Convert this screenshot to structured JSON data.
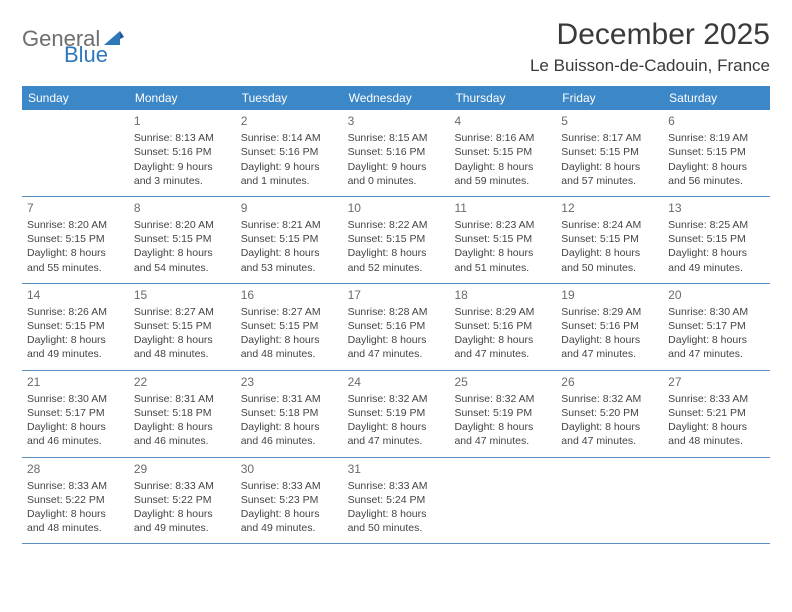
{
  "logo": {
    "part1": "General",
    "part2": "Blue"
  },
  "title": "December 2025",
  "location": "Le Buisson-de-Cadouin, France",
  "colors": {
    "header_bg": "#3b87c8",
    "header_text": "#ffffff",
    "border": "#5a8fbf",
    "daynum": "#6b6b6b",
    "body_text": "#444444",
    "logo_gray": "#6e6e6e",
    "logo_blue": "#2f77bb"
  },
  "weekdays": [
    "Sunday",
    "Monday",
    "Tuesday",
    "Wednesday",
    "Thursday",
    "Friday",
    "Saturday"
  ],
  "weeks": [
    [
      {
        "n": "",
        "sr": "",
        "ss": "",
        "dl": ""
      },
      {
        "n": "1",
        "sr": "Sunrise: 8:13 AM",
        "ss": "Sunset: 5:16 PM",
        "dl": "Daylight: 9 hours and 3 minutes."
      },
      {
        "n": "2",
        "sr": "Sunrise: 8:14 AM",
        "ss": "Sunset: 5:16 PM",
        "dl": "Daylight: 9 hours and 1 minutes."
      },
      {
        "n": "3",
        "sr": "Sunrise: 8:15 AM",
        "ss": "Sunset: 5:16 PM",
        "dl": "Daylight: 9 hours and 0 minutes."
      },
      {
        "n": "4",
        "sr": "Sunrise: 8:16 AM",
        "ss": "Sunset: 5:15 PM",
        "dl": "Daylight: 8 hours and 59 minutes."
      },
      {
        "n": "5",
        "sr": "Sunrise: 8:17 AM",
        "ss": "Sunset: 5:15 PM",
        "dl": "Daylight: 8 hours and 57 minutes."
      },
      {
        "n": "6",
        "sr": "Sunrise: 8:19 AM",
        "ss": "Sunset: 5:15 PM",
        "dl": "Daylight: 8 hours and 56 minutes."
      }
    ],
    [
      {
        "n": "7",
        "sr": "Sunrise: 8:20 AM",
        "ss": "Sunset: 5:15 PM",
        "dl": "Daylight: 8 hours and 55 minutes."
      },
      {
        "n": "8",
        "sr": "Sunrise: 8:20 AM",
        "ss": "Sunset: 5:15 PM",
        "dl": "Daylight: 8 hours and 54 minutes."
      },
      {
        "n": "9",
        "sr": "Sunrise: 8:21 AM",
        "ss": "Sunset: 5:15 PM",
        "dl": "Daylight: 8 hours and 53 minutes."
      },
      {
        "n": "10",
        "sr": "Sunrise: 8:22 AM",
        "ss": "Sunset: 5:15 PM",
        "dl": "Daylight: 8 hours and 52 minutes."
      },
      {
        "n": "11",
        "sr": "Sunrise: 8:23 AM",
        "ss": "Sunset: 5:15 PM",
        "dl": "Daylight: 8 hours and 51 minutes."
      },
      {
        "n": "12",
        "sr": "Sunrise: 8:24 AM",
        "ss": "Sunset: 5:15 PM",
        "dl": "Daylight: 8 hours and 50 minutes."
      },
      {
        "n": "13",
        "sr": "Sunrise: 8:25 AM",
        "ss": "Sunset: 5:15 PM",
        "dl": "Daylight: 8 hours and 49 minutes."
      }
    ],
    [
      {
        "n": "14",
        "sr": "Sunrise: 8:26 AM",
        "ss": "Sunset: 5:15 PM",
        "dl": "Daylight: 8 hours and 49 minutes."
      },
      {
        "n": "15",
        "sr": "Sunrise: 8:27 AM",
        "ss": "Sunset: 5:15 PM",
        "dl": "Daylight: 8 hours and 48 minutes."
      },
      {
        "n": "16",
        "sr": "Sunrise: 8:27 AM",
        "ss": "Sunset: 5:15 PM",
        "dl": "Daylight: 8 hours and 48 minutes."
      },
      {
        "n": "17",
        "sr": "Sunrise: 8:28 AM",
        "ss": "Sunset: 5:16 PM",
        "dl": "Daylight: 8 hours and 47 minutes."
      },
      {
        "n": "18",
        "sr": "Sunrise: 8:29 AM",
        "ss": "Sunset: 5:16 PM",
        "dl": "Daylight: 8 hours and 47 minutes."
      },
      {
        "n": "19",
        "sr": "Sunrise: 8:29 AM",
        "ss": "Sunset: 5:16 PM",
        "dl": "Daylight: 8 hours and 47 minutes."
      },
      {
        "n": "20",
        "sr": "Sunrise: 8:30 AM",
        "ss": "Sunset: 5:17 PM",
        "dl": "Daylight: 8 hours and 47 minutes."
      }
    ],
    [
      {
        "n": "21",
        "sr": "Sunrise: 8:30 AM",
        "ss": "Sunset: 5:17 PM",
        "dl": "Daylight: 8 hours and 46 minutes."
      },
      {
        "n": "22",
        "sr": "Sunrise: 8:31 AM",
        "ss": "Sunset: 5:18 PM",
        "dl": "Daylight: 8 hours and 46 minutes."
      },
      {
        "n": "23",
        "sr": "Sunrise: 8:31 AM",
        "ss": "Sunset: 5:18 PM",
        "dl": "Daylight: 8 hours and 46 minutes."
      },
      {
        "n": "24",
        "sr": "Sunrise: 8:32 AM",
        "ss": "Sunset: 5:19 PM",
        "dl": "Daylight: 8 hours and 47 minutes."
      },
      {
        "n": "25",
        "sr": "Sunrise: 8:32 AM",
        "ss": "Sunset: 5:19 PM",
        "dl": "Daylight: 8 hours and 47 minutes."
      },
      {
        "n": "26",
        "sr": "Sunrise: 8:32 AM",
        "ss": "Sunset: 5:20 PM",
        "dl": "Daylight: 8 hours and 47 minutes."
      },
      {
        "n": "27",
        "sr": "Sunrise: 8:33 AM",
        "ss": "Sunset: 5:21 PM",
        "dl": "Daylight: 8 hours and 48 minutes."
      }
    ],
    [
      {
        "n": "28",
        "sr": "Sunrise: 8:33 AM",
        "ss": "Sunset: 5:22 PM",
        "dl": "Daylight: 8 hours and 48 minutes."
      },
      {
        "n": "29",
        "sr": "Sunrise: 8:33 AM",
        "ss": "Sunset: 5:22 PM",
        "dl": "Daylight: 8 hours and 49 minutes."
      },
      {
        "n": "30",
        "sr": "Sunrise: 8:33 AM",
        "ss": "Sunset: 5:23 PM",
        "dl": "Daylight: 8 hours and 49 minutes."
      },
      {
        "n": "31",
        "sr": "Sunrise: 8:33 AM",
        "ss": "Sunset: 5:24 PM",
        "dl": "Daylight: 8 hours and 50 minutes."
      },
      {
        "n": "",
        "sr": "",
        "ss": "",
        "dl": ""
      },
      {
        "n": "",
        "sr": "",
        "ss": "",
        "dl": ""
      },
      {
        "n": "",
        "sr": "",
        "ss": "",
        "dl": ""
      }
    ]
  ]
}
